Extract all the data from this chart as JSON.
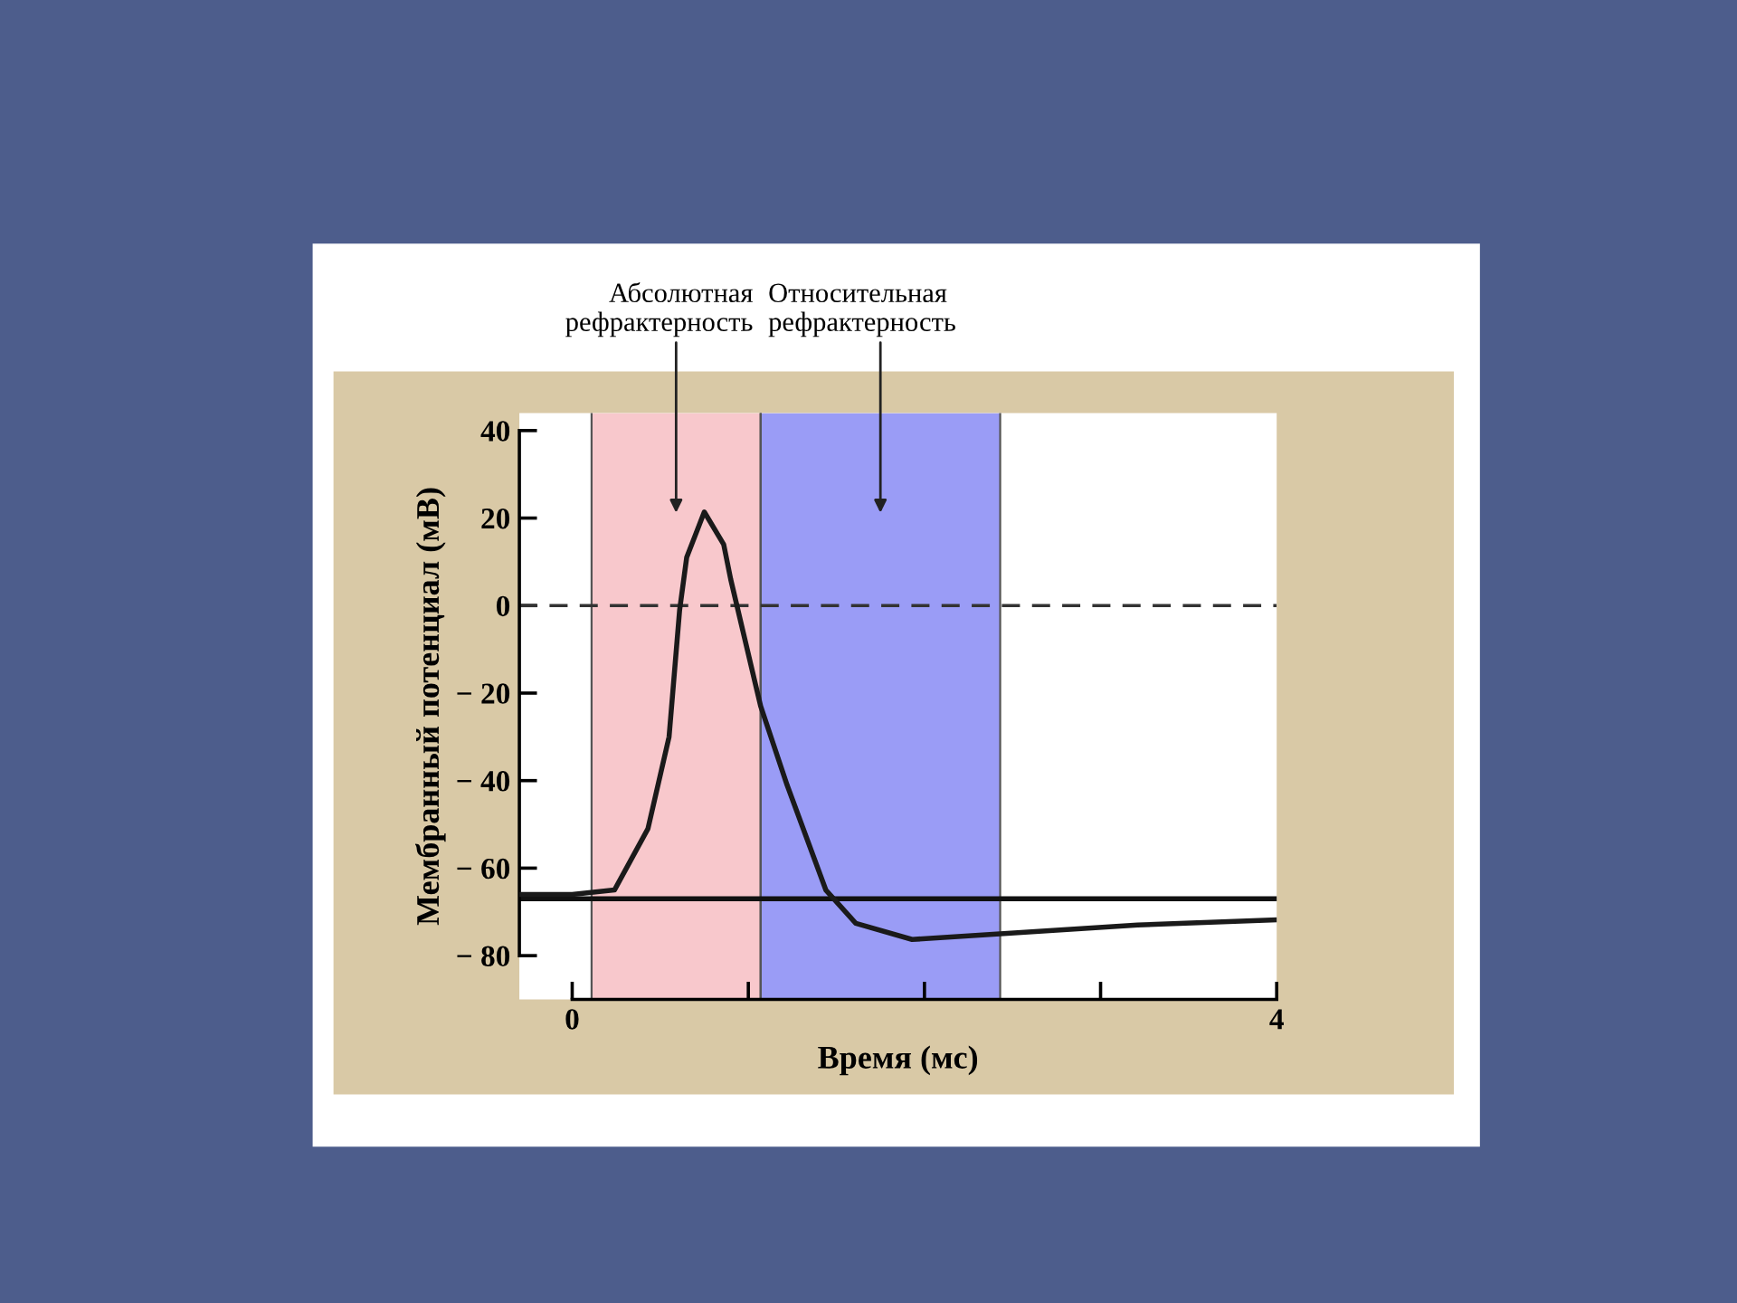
{
  "chart_data": {
    "type": "line",
    "xlabel": "Время (мс)",
    "ylabel": "Мембранный потенциал (мВ)",
    "xlim": [
      -0.3,
      4.0
    ],
    "ylim": [
      -90,
      44
    ],
    "xticks": [
      0,
      {
        "value": 1,
        "label": null
      },
      {
        "value": 2,
        "label": null
      },
      {
        "value": 3,
        "label": null
      },
      4
    ],
    "yticks": [
      40,
      20,
      0,
      {
        "value": -20,
        "label": "− 20"
      },
      {
        "value": -40,
        "label": "− 40"
      },
      {
        "value": -60,
        "label": "− 60"
      },
      {
        "value": -80,
        "label": "− 80"
      }
    ],
    "series": [
      {
        "color": "#1a1a1a",
        "x": [
          -0.3,
          0.0,
          0.24,
          0.43,
          0.55,
          0.61,
          0.65,
          0.75,
          0.86,
          0.9,
          1.07,
          1.22,
          1.44,
          1.61,
          1.93,
          2.43,
          3.21,
          4.0
        ],
        "values": [
          -66,
          -66,
          -65,
          -51,
          -30,
          -1,
          11,
          21.4,
          14,
          6,
          -23,
          -41,
          -65,
          -72.6,
          -76.3,
          -75,
          -73,
          -71.8
        ]
      }
    ],
    "bands": [
      {
        "axis": "x",
        "from": 0.11,
        "to": 1.07,
        "color": "#f8c8cc"
      },
      {
        "axis": "x",
        "from": 1.07,
        "to": 2.43,
        "color": "#9a9cf6"
      }
    ],
    "ref_lines": [
      {
        "axis": "y",
        "value": 0,
        "line_style": "dashed",
        "color": "#333333"
      },
      {
        "axis": "y",
        "value": -67,
        "line_style": "solid",
        "color": "#111111"
      }
    ],
    "annotations": [
      "Абсолютная\nрефрактерность",
      "Относительная\nрефрактерность"
    ],
    "grid": false,
    "legend": false,
    "marker": "none",
    "line_style": "solid"
  }
}
